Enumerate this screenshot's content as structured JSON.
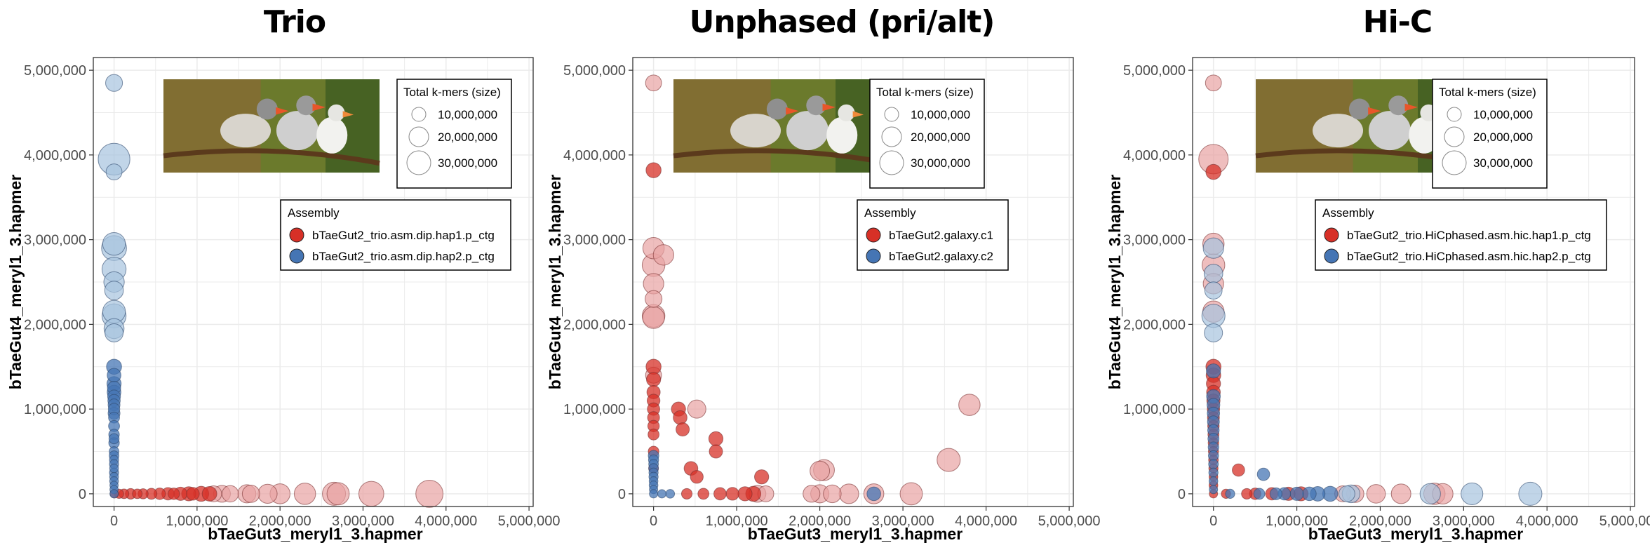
{
  "figure": {
    "colors": {
      "series1": "#d73027",
      "series2": "#4575b4",
      "series1_fill": "#e8a3a3",
      "series2_fill": "#a7c3de",
      "grid": "#ebebeb",
      "panel_border": "#333333"
    },
    "size_legend": {
      "title": "Total k-mers (size)",
      "items": [
        "10,000,000",
        "20,000,000",
        "30,000,000"
      ],
      "values": [
        10000000,
        20000000,
        30000000
      ]
    },
    "legend_title": "Assembly",
    "image_description_icon": "zebra-finch-photo"
  },
  "chart_data": [
    {
      "type": "scatter",
      "title": "Trio",
      "xlabel": "bTaeGut3_meryl1_3.hapmer",
      "ylabel": "bTaeGut4_meryl1_3.hapmer",
      "xlim": [
        -250000,
        5050000
      ],
      "ylim": [
        -150000,
        5150000
      ],
      "x_ticks": [
        "0",
        "1,000,000",
        "2,000,000",
        "3,000,000",
        "4,000,000",
        "5,000,000"
      ],
      "y_ticks": [
        "0",
        "1,000,000",
        "2,000,000",
        "3,000,000",
        "4,000,000",
        "5,000,000"
      ],
      "grid": true,
      "legend_position": "top-right",
      "series": [
        {
          "name": "bTaeGut2_trio.asm.dip.hap1.p_ctg",
          "points": [
            [
              5000,
              0,
              0.3
            ],
            [
              60000,
              0,
              0.5
            ],
            [
              120000,
              0,
              0.6
            ],
            [
              200000,
              0,
              0.8
            ],
            [
              280000,
              0,
              0.6
            ],
            [
              350000,
              0,
              0.7
            ],
            [
              450000,
              0,
              0.9
            ],
            [
              550000,
              0,
              1.0
            ],
            [
              650000,
              0,
              1.2
            ],
            [
              720000,
              0,
              1.0
            ],
            [
              800000,
              0,
              1.4
            ],
            [
              900000,
              0,
              1.6
            ],
            [
              950000,
              0,
              1.3
            ],
            [
              1050000,
              0,
              1.8
            ],
            [
              1150000,
              0,
              1.7
            ],
            [
              1200000,
              0,
              2.0
            ],
            [
              1300000,
              0,
              2.2
            ],
            [
              1400000,
              0,
              2.1
            ],
            [
              1600000,
              0,
              2.5
            ],
            [
              1650000,
              0,
              2.3
            ],
            [
              1850000,
              0,
              2.7
            ],
            [
              2000000,
              0,
              2.9
            ],
            [
              2300000,
              0,
              3.2
            ],
            [
              2650000,
              0,
              3.6
            ],
            [
              2700000,
              0,
              3.4
            ],
            [
              3100000,
              0,
              4.0
            ],
            [
              3800000,
              0,
              4.5
            ]
          ]
        },
        {
          "name": "bTaeGut2_trio.asm.dip.hap2.p_ctg",
          "points": [
            [
              0,
              4850000,
              2.2
            ],
            [
              0,
              3950000,
              5.5
            ],
            [
              0,
              3800000,
              2.0
            ],
            [
              0,
              2950000,
              3.5
            ],
            [
              0,
              2900000,
              4.0
            ],
            [
              0,
              2650000,
              3.8
            ],
            [
              0,
              2500000,
              3.0
            ],
            [
              0,
              2400000,
              2.6
            ],
            [
              0,
              2150000,
              3.5
            ],
            [
              0,
              2100000,
              3.8
            ],
            [
              0,
              1950000,
              2.9
            ],
            [
              0,
              1900000,
              2.5
            ],
            [
              0,
              1500000,
              1.8
            ],
            [
              0,
              1400000,
              1.5
            ],
            [
              0,
              1300000,
              1.6
            ],
            [
              0,
              1250000,
              1.4
            ],
            [
              0,
              1200000,
              1.5
            ],
            [
              0,
              1150000,
              1.3
            ],
            [
              0,
              1100000,
              1.2
            ],
            [
              0,
              1050000,
              1.1
            ],
            [
              0,
              1000000,
              1.0
            ],
            [
              0,
              950000,
              1.1
            ],
            [
              0,
              900000,
              0.9
            ],
            [
              0,
              800000,
              0.9
            ],
            [
              0,
              700000,
              0.8
            ],
            [
              0,
              650000,
              0.7
            ],
            [
              0,
              600000,
              0.8
            ],
            [
              0,
              500000,
              0.6
            ],
            [
              0,
              450000,
              0.6
            ],
            [
              0,
              400000,
              0.5
            ],
            [
              0,
              350000,
              0.5
            ],
            [
              0,
              300000,
              0.4
            ],
            [
              0,
              250000,
              0.5
            ],
            [
              0,
              200000,
              0.4
            ],
            [
              0,
              150000,
              0.4
            ],
            [
              0,
              100000,
              0.3
            ],
            [
              0,
              50000,
              0.3
            ],
            [
              0,
              0,
              0.3
            ]
          ]
        }
      ]
    },
    {
      "type": "scatter",
      "title": "Unphased (pri/alt)",
      "xlabel": "bTaeGut3_meryl1_3.hapmer",
      "ylabel": "bTaeGut4_meryl1_3.hapmer",
      "xlim": [
        -250000,
        5050000
      ],
      "ylim": [
        -150000,
        5150000
      ],
      "x_ticks": [
        "0",
        "1,000,000",
        "2,000,000",
        "3,000,000",
        "4,000,000",
        "5,000,000"
      ],
      "y_ticks": [
        "0",
        "1,000,000",
        "2,000,000",
        "3,000,000",
        "4,000,000",
        "5,000,000"
      ],
      "grid": true,
      "legend_position": "top-right",
      "series": [
        {
          "name": "bTaeGut2.galaxy.c1",
          "points": [
            [
              0,
              4850000,
              2.0
            ],
            [
              0,
              3820000,
              1.8
            ],
            [
              0,
              2900000,
              3.2
            ],
            [
              120000,
              2820000,
              3.0
            ],
            [
              0,
              2700000,
              3.5
            ],
            [
              0,
              2480000,
              3.0
            ],
            [
              0,
              2300000,
              2.2
            ],
            [
              0,
              2100000,
              3.5
            ],
            [
              0,
              2080000,
              3.3
            ],
            [
              0,
              1500000,
              1.8
            ],
            [
              0,
              1400000,
              2.0
            ],
            [
              0,
              1350000,
              1.6
            ],
            [
              0,
              1200000,
              1.4
            ],
            [
              0,
              1100000,
              1.3
            ],
            [
              0,
              1000000,
              1.2
            ],
            [
              0,
              900000,
              1.1
            ],
            [
              0,
              800000,
              1.0
            ],
            [
              0,
              700000,
              0.9
            ],
            [
              0,
              500000,
              0.8
            ],
            [
              0,
              300000,
              0.6
            ],
            [
              300000,
              1000000,
              1.6
            ],
            [
              320000,
              900000,
              1.5
            ],
            [
              520000,
              1000000,
              2.5
            ],
            [
              350000,
              760000,
              1.4
            ],
            [
              750000,
              650000,
              1.6
            ],
            [
              750000,
              500000,
              1.4
            ],
            [
              450000,
              300000,
              1.5
            ],
            [
              520000,
              200000,
              1.3
            ],
            [
              1300000,
              200000,
              1.6
            ],
            [
              2050000,
              280000,
              3.1
            ],
            [
              2000000,
              270000,
              2.8
            ],
            [
              3800000,
              1050000,
              3.2
            ],
            [
              3550000,
              400000,
              3.6
            ],
            [
              400000,
              0,
              0.8
            ],
            [
              600000,
              0,
              0.9
            ],
            [
              800000,
              0,
              1.2
            ],
            [
              950000,
              0,
              1.3
            ],
            [
              1100000,
              0,
              1.6
            ],
            [
              1200000,
              0,
              1.8
            ],
            [
              1250000,
              0,
              2.2
            ],
            [
              1350000,
              0,
              2.0
            ],
            [
              1900000,
              0,
              2.2
            ],
            [
              2000000,
              0,
              2.5
            ],
            [
              2150000,
              0,
              2.4
            ],
            [
              2350000,
              0,
              2.8
            ],
            [
              2650000,
              0,
              2.9
            ],
            [
              3100000,
              0,
              3.4
            ]
          ]
        },
        {
          "name": "bTaeGut2.galaxy.c2",
          "points": [
            [
              0,
              450000,
              0.8
            ],
            [
              0,
              400000,
              0.7
            ],
            [
              0,
              350000,
              0.6
            ],
            [
              0,
              300000,
              0.6
            ],
            [
              0,
              250000,
              0.5
            ],
            [
              0,
              200000,
              0.5
            ],
            [
              0,
              150000,
              0.4
            ],
            [
              0,
              100000,
              0.4
            ],
            [
              0,
              50000,
              0.3
            ],
            [
              0,
              0,
              0.3
            ],
            [
              100000,
              0,
              0.3
            ],
            [
              200000,
              0,
              0.4
            ],
            [
              2650000,
              0,
              1.5
            ]
          ]
        }
      ]
    },
    {
      "type": "scatter",
      "title": "Hi-C",
      "xlabel": "bTaeGut3_meryl1_3.hapmer",
      "ylabel": "bTaeGut4_meryl1_3.hapmer",
      "xlim": [
        -250000,
        5050000
      ],
      "ylim": [
        -150000,
        5150000
      ],
      "x_ticks": [
        "0",
        "1,000,000",
        "2,000,000",
        "3,000,000",
        "4,000,000",
        "5,000,000"
      ],
      "y_ticks": [
        "0",
        "1,000,000",
        "2,000,000",
        "3,000,000",
        "4,000,000",
        "5,000,000"
      ],
      "grid": true,
      "legend_position": "top-right",
      "series": [
        {
          "name": "bTaeGut2_trio.HiCphased.asm.hic.hap1.p_ctg",
          "points": [
            [
              0,
              4850000,
              2.0
            ],
            [
              0,
              3950000,
              5.0
            ],
            [
              0,
              3800000,
              1.8
            ],
            [
              0,
              2950000,
              3.2
            ],
            [
              0,
              2700000,
              3.5
            ],
            [
              0,
              2480000,
              3.0
            ],
            [
              0,
              2150000,
              3.2
            ],
            [
              0,
              1500000,
              1.8
            ],
            [
              0,
              1400000,
              1.7
            ],
            [
              0,
              1300000,
              1.6
            ],
            [
              0,
              1200000,
              1.5
            ],
            [
              0,
              1100000,
              1.4
            ],
            [
              0,
              1000000,
              1.2
            ],
            [
              0,
              900000,
              1.1
            ],
            [
              0,
              800000,
              1.0
            ],
            [
              0,
              700000,
              0.9
            ],
            [
              0,
              600000,
              0.8
            ],
            [
              0,
              500000,
              0.7
            ],
            [
              0,
              400000,
              0.6
            ],
            [
              0,
              300000,
              0.5
            ],
            [
              0,
              200000,
              0.4
            ],
            [
              0,
              100000,
              0.4
            ],
            [
              0,
              0,
              0.3
            ],
            [
              150000,
              0,
              0.5
            ],
            [
              300000,
              280000,
              1.2
            ],
            [
              400000,
              0,
              0.8
            ],
            [
              500000,
              0,
              1.0
            ],
            [
              700000,
              0,
              1.2
            ],
            [
              900000,
              0,
              1.4
            ],
            [
              1050000,
              0,
              1.6
            ],
            [
              1550000,
              0,
              2.0
            ],
            [
              1700000,
              0,
              2.3
            ],
            [
              1950000,
              0,
              2.6
            ],
            [
              2250000,
              0,
              2.8
            ],
            [
              2650000,
              0,
              3.2
            ],
            [
              2750000,
              0,
              3.0
            ]
          ]
        },
        {
          "name": "bTaeGut2_trio.HiCphased.asm.hic.hap2.p_ctg",
          "points": [
            [
              0,
              2900000,
              3.0
            ],
            [
              0,
              2600000,
              2.6
            ],
            [
              0,
              2400000,
              2.3
            ],
            [
              0,
              2100000,
              3.6
            ],
            [
              0,
              1900000,
              2.5
            ],
            [
              0,
              1450000,
              1.6
            ],
            [
              0,
              1150000,
              1.5
            ],
            [
              0,
              1050000,
              1.3
            ],
            [
              0,
              950000,
              1.2
            ],
            [
              0,
              850000,
              1.1
            ],
            [
              0,
              750000,
              1.0
            ],
            [
              0,
              650000,
              0.9
            ],
            [
              0,
              550000,
              0.8
            ],
            [
              0,
              450000,
              0.7
            ],
            [
              0,
              350000,
              0.6
            ],
            [
              0,
              250000,
              0.5
            ],
            [
              0,
              150000,
              0.4
            ],
            [
              0,
              50000,
              0.3
            ],
            [
              200000,
              0,
              0.5
            ],
            [
              550000,
              0,
              0.9
            ],
            [
              600000,
              230000,
              1.2
            ],
            [
              750000,
              0,
              1.1
            ],
            [
              850000,
              0,
              1.2
            ],
            [
              1000000,
              0,
              1.4
            ],
            [
              1150000,
              0,
              1.5
            ],
            [
              1250000,
              0,
              1.7
            ],
            [
              1400000,
              0,
              1.8
            ],
            [
              1600000,
              0,
              2.0
            ],
            [
              1650000,
              0,
              2.4
            ],
            [
              2600000,
              0,
              3.0
            ],
            [
              3100000,
              0,
              3.3
            ],
            [
              3800000,
              0,
              3.6
            ]
          ]
        }
      ]
    }
  ]
}
